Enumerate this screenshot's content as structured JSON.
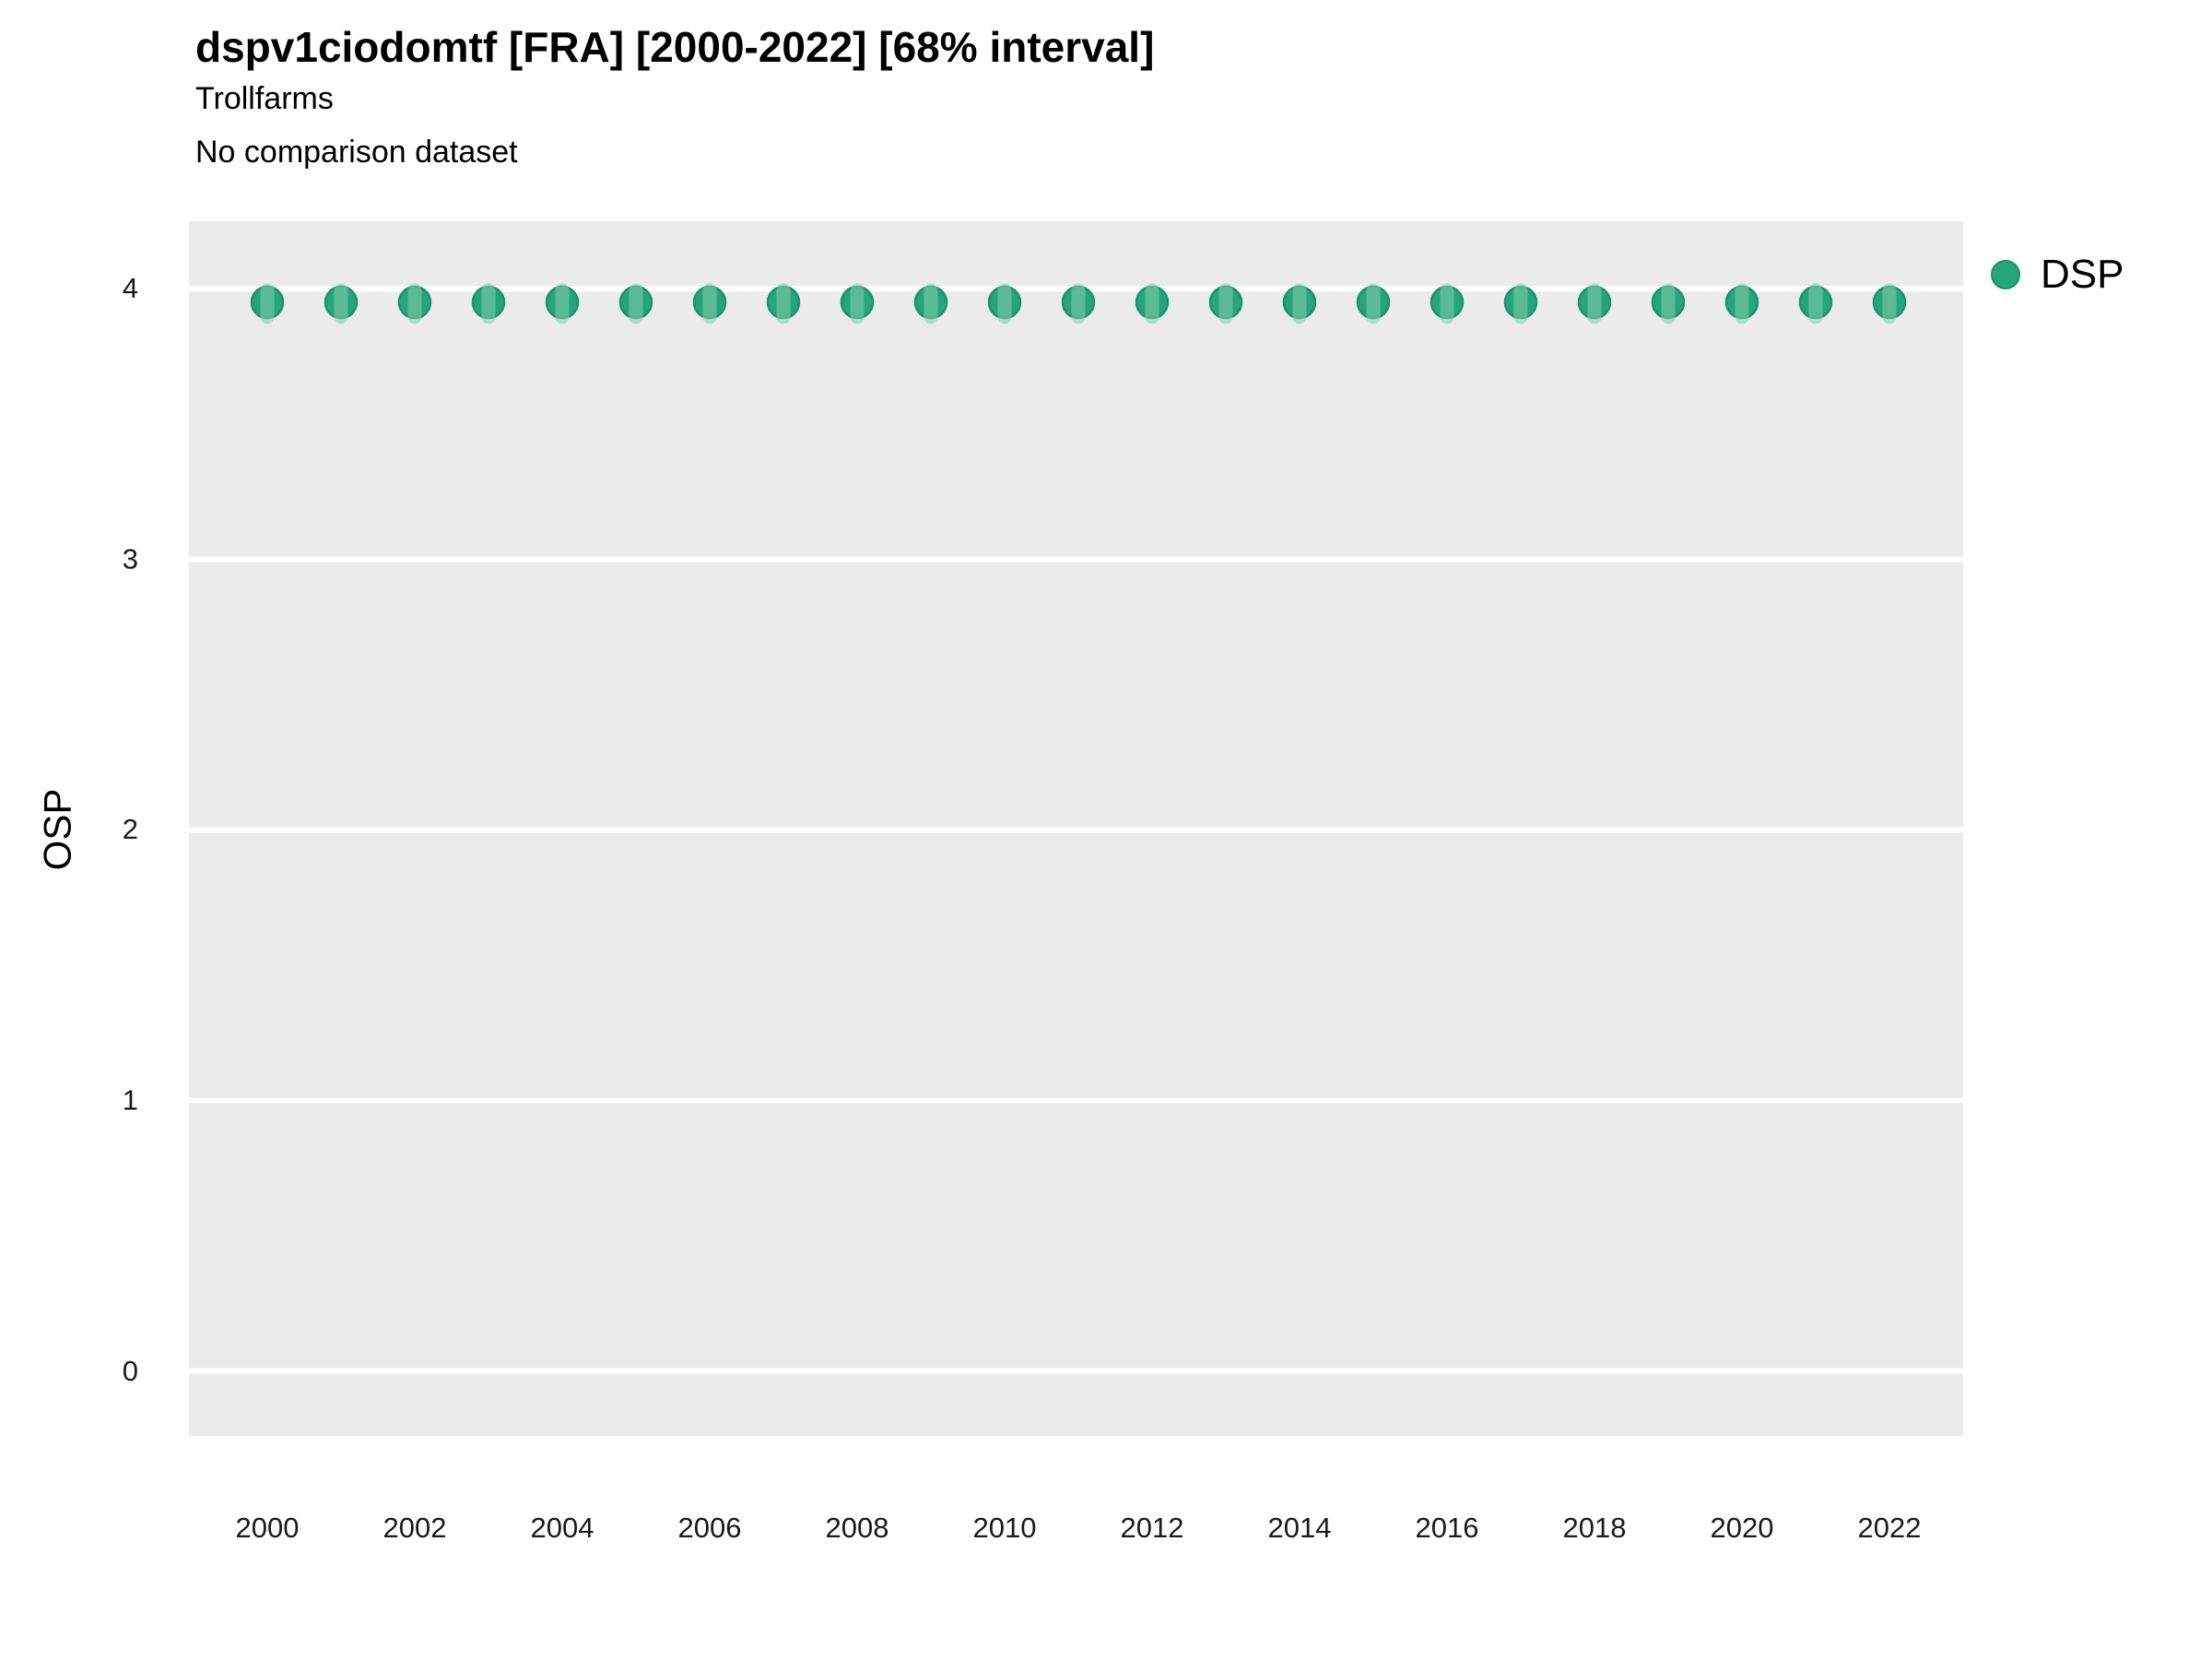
{
  "chart": {
    "title": "dspv1ciodomtf [FRA] [2000-2022] [68% interval]",
    "subtitle": "Trollfarms",
    "note": "No comparison dataset",
    "ylabel": "OSP"
  },
  "legend": {
    "label": "DSP",
    "position": "right"
  },
  "chart_data": {
    "type": "scatter",
    "title": "dspv1ciodomtf [FRA] [2000-2022] [68% interval]",
    "subtitle": "Trollfarms",
    "note": "No comparison dataset",
    "xlabel": "",
    "ylabel": "OSP",
    "x": [
      2000,
      2001,
      2002,
      2003,
      2004,
      2005,
      2006,
      2007,
      2008,
      2009,
      2010,
      2011,
      2012,
      2013,
      2014,
      2015,
      2016,
      2017,
      2018,
      2019,
      2020,
      2021,
      2022
    ],
    "series": [
      {
        "name": "DSP",
        "values": [
          3.95,
          3.95,
          3.95,
          3.95,
          3.95,
          3.95,
          3.95,
          3.95,
          3.95,
          3.95,
          3.95,
          3.95,
          3.95,
          3.95,
          3.95,
          3.95,
          3.95,
          3.95,
          3.95,
          3.95,
          3.95,
          3.95,
          3.95
        ],
        "interval_low": [
          3.87,
          3.87,
          3.87,
          3.87,
          3.87,
          3.87,
          3.87,
          3.87,
          3.87,
          3.87,
          3.87,
          3.87,
          3.87,
          3.87,
          3.87,
          3.87,
          3.87,
          3.87,
          3.87,
          3.87,
          3.87,
          3.87,
          3.87
        ],
        "interval_high": [
          4.02,
          4.02,
          4.02,
          4.02,
          4.02,
          4.02,
          4.02,
          4.02,
          4.02,
          4.02,
          4.02,
          4.02,
          4.02,
          4.02,
          4.02,
          4.02,
          4.02,
          4.02,
          4.02,
          4.02,
          4.02,
          4.02,
          4.02
        ],
        "interval_label": "68% interval"
      }
    ],
    "ylim": [
      -0.24,
      4.25
    ],
    "yticks": [
      "0",
      "1",
      "2",
      "3",
      "4"
    ],
    "xticks": [
      "2000",
      "2002",
      "2004",
      "2006",
      "2008",
      "2010",
      "2012",
      "2014",
      "2016",
      "2018",
      "2020",
      "2022"
    ],
    "grid": "horizontal major gridlines only, white on grey panel",
    "legend_position": "right",
    "colors": {
      "point_fill": "#26a57c",
      "point_stroke": "#17946b",
      "interval_band": "#86ceae",
      "panel_background": "#ebebeb",
      "gridline": "#ffffff",
      "text": "#000000"
    }
  }
}
